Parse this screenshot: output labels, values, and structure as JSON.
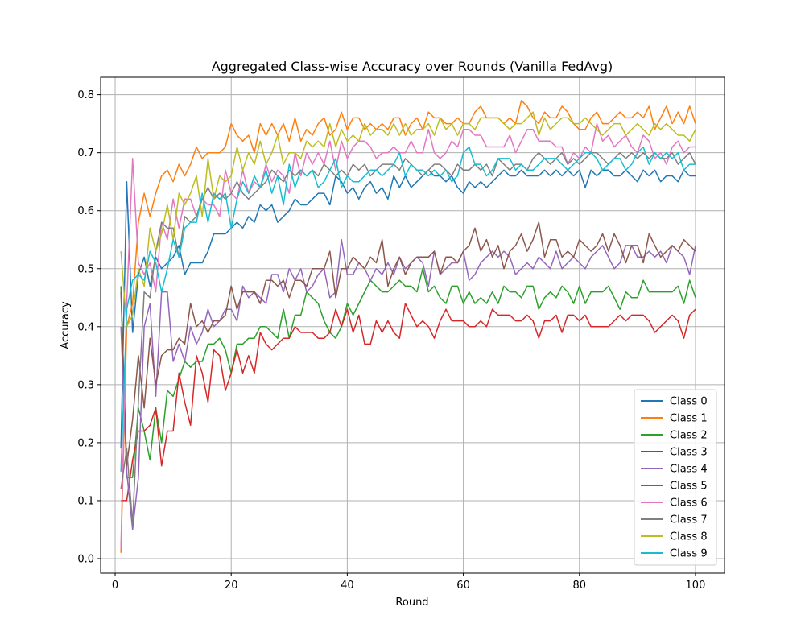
{
  "chart_data": {
    "type": "line",
    "title": "Aggregated Class-wise Accuracy over Rounds (Vanilla FedAvg)",
    "xlabel": "Round",
    "ylabel": "Accuracy",
    "xlim": [
      -2.5,
      105
    ],
    "ylim": [
      -0.025,
      0.83
    ],
    "x_ticks": [
      0,
      20,
      40,
      60,
      80,
      100
    ],
    "y_ticks": [
      0.0,
      0.1,
      0.2,
      0.3,
      0.4,
      0.5,
      0.6,
      0.7,
      0.8
    ],
    "grid": true,
    "legend_position": "lower-right",
    "x_start": 1,
    "series": [
      {
        "name": "Class 0",
        "color": "#1f77b4",
        "values": [
          0.19,
          0.65,
          0.39,
          0.49,
          0.52,
          0.47,
          0.52,
          0.5,
          0.51,
          0.52,
          0.54,
          0.49,
          0.51,
          0.51,
          0.51,
          0.53,
          0.56,
          0.56,
          0.56,
          0.57,
          0.58,
          0.57,
          0.59,
          0.58,
          0.61,
          0.6,
          0.61,
          0.58,
          0.59,
          0.6,
          0.62,
          0.61,
          0.61,
          0.62,
          0.63,
          0.63,
          0.61,
          0.66,
          0.65,
          0.63,
          0.64,
          0.62,
          0.64,
          0.65,
          0.63,
          0.64,
          0.62,
          0.66,
          0.64,
          0.66,
          0.64,
          0.65,
          0.66,
          0.67,
          0.66,
          0.66,
          0.65,
          0.66,
          0.64,
          0.63,
          0.65,
          0.64,
          0.65,
          0.64,
          0.65,
          0.66,
          0.67,
          0.66,
          0.66,
          0.67,
          0.66,
          0.66,
          0.66,
          0.67,
          0.66,
          0.67,
          0.66,
          0.67,
          0.66,
          0.67,
          0.64,
          0.67,
          0.66,
          0.67,
          0.67,
          0.66,
          0.66,
          0.67,
          0.66,
          0.65,
          0.67,
          0.66,
          0.67,
          0.65,
          0.66,
          0.66,
          0.65,
          0.67,
          0.66,
          0.66
        ]
      },
      {
        "name": "Class 1",
        "color": "#ff7f0e",
        "values": [
          0.01,
          0.4,
          0.44,
          0.58,
          0.63,
          0.59,
          0.63,
          0.66,
          0.67,
          0.65,
          0.68,
          0.66,
          0.68,
          0.71,
          0.69,
          0.7,
          0.7,
          0.7,
          0.71,
          0.75,
          0.73,
          0.72,
          0.73,
          0.7,
          0.75,
          0.73,
          0.75,
          0.73,
          0.75,
          0.72,
          0.76,
          0.72,
          0.74,
          0.73,
          0.75,
          0.76,
          0.73,
          0.74,
          0.77,
          0.74,
          0.76,
          0.76,
          0.74,
          0.75,
          0.74,
          0.75,
          0.74,
          0.76,
          0.76,
          0.73,
          0.75,
          0.76,
          0.74,
          0.77,
          0.76,
          0.76,
          0.75,
          0.75,
          0.76,
          0.75,
          0.75,
          0.77,
          0.78,
          0.76,
          0.76,
          0.76,
          0.75,
          0.76,
          0.75,
          0.79,
          0.78,
          0.76,
          0.75,
          0.77,
          0.76,
          0.76,
          0.78,
          0.77,
          0.75,
          0.74,
          0.74,
          0.76,
          0.77,
          0.75,
          0.75,
          0.76,
          0.77,
          0.76,
          0.76,
          0.77,
          0.76,
          0.78,
          0.74,
          0.76,
          0.78,
          0.75,
          0.77,
          0.75,
          0.78,
          0.75
        ]
      },
      {
        "name": "Class 2",
        "color": "#2ca02c",
        "values": [
          0.47,
          0.14,
          0.14,
          0.26,
          0.22,
          0.17,
          0.26,
          0.2,
          0.29,
          0.28,
          0.31,
          0.34,
          0.33,
          0.34,
          0.34,
          0.37,
          0.37,
          0.38,
          0.36,
          0.32,
          0.37,
          0.37,
          0.38,
          0.38,
          0.4,
          0.4,
          0.39,
          0.38,
          0.43,
          0.38,
          0.42,
          0.42,
          0.46,
          0.45,
          0.44,
          0.41,
          0.39,
          0.38,
          0.4,
          0.44,
          0.42,
          0.44,
          0.46,
          0.48,
          0.47,
          0.46,
          0.46,
          0.47,
          0.48,
          0.47,
          0.47,
          0.46,
          0.5,
          0.46,
          0.47,
          0.45,
          0.44,
          0.47,
          0.47,
          0.44,
          0.46,
          0.44,
          0.45,
          0.44,
          0.46,
          0.44,
          0.47,
          0.46,
          0.46,
          0.45,
          0.47,
          0.47,
          0.43,
          0.45,
          0.46,
          0.45,
          0.47,
          0.46,
          0.44,
          0.47,
          0.44,
          0.46,
          0.46,
          0.46,
          0.47,
          0.45,
          0.43,
          0.46,
          0.45,
          0.45,
          0.48,
          0.46,
          0.46,
          0.46,
          0.46,
          0.46,
          0.47,
          0.44,
          0.48,
          0.45
        ]
      },
      {
        "name": "Class 3",
        "color": "#d62728",
        "values": [
          0.1,
          0.1,
          0.17,
          0.22,
          0.22,
          0.23,
          0.26,
          0.16,
          0.22,
          0.22,
          0.32,
          0.27,
          0.23,
          0.35,
          0.32,
          0.27,
          0.36,
          0.35,
          0.29,
          0.32,
          0.36,
          0.32,
          0.35,
          0.32,
          0.39,
          0.37,
          0.36,
          0.37,
          0.38,
          0.38,
          0.4,
          0.39,
          0.39,
          0.39,
          0.38,
          0.38,
          0.39,
          0.43,
          0.4,
          0.43,
          0.39,
          0.42,
          0.37,
          0.37,
          0.41,
          0.39,
          0.41,
          0.39,
          0.38,
          0.44,
          0.42,
          0.4,
          0.41,
          0.4,
          0.38,
          0.41,
          0.43,
          0.41,
          0.41,
          0.41,
          0.4,
          0.4,
          0.41,
          0.4,
          0.43,
          0.42,
          0.42,
          0.42,
          0.41,
          0.41,
          0.42,
          0.41,
          0.38,
          0.41,
          0.41,
          0.42,
          0.39,
          0.42,
          0.42,
          0.41,
          0.42,
          0.4,
          0.4,
          0.4,
          0.4,
          0.41,
          0.42,
          0.41,
          0.42,
          0.42,
          0.42,
          0.41,
          0.39,
          0.4,
          0.41,
          0.42,
          0.41,
          0.38,
          0.42,
          0.43
        ]
      },
      {
        "name": "Class 4",
        "color": "#9467bd",
        "values": [
          0.4,
          0.15,
          0.05,
          0.14,
          0.4,
          0.44,
          0.28,
          0.46,
          0.46,
          0.34,
          0.37,
          0.34,
          0.4,
          0.37,
          0.39,
          0.43,
          0.4,
          0.41,
          0.43,
          0.43,
          0.41,
          0.47,
          0.45,
          0.46,
          0.45,
          0.44,
          0.49,
          0.49,
          0.46,
          0.5,
          0.48,
          0.5,
          0.46,
          0.47,
          0.49,
          0.5,
          0.45,
          0.46,
          0.55,
          0.49,
          0.49,
          0.51,
          0.5,
          0.48,
          0.5,
          0.49,
          0.51,
          0.49,
          0.52,
          0.5,
          0.51,
          0.52,
          0.51,
          0.47,
          0.53,
          0.49,
          0.5,
          0.51,
          0.51,
          0.53,
          0.48,
          0.49,
          0.51,
          0.52,
          0.53,
          0.52,
          0.53,
          0.52,
          0.49,
          0.5,
          0.51,
          0.5,
          0.52,
          0.51,
          0.5,
          0.53,
          0.5,
          0.51,
          0.52,
          0.51,
          0.5,
          0.52,
          0.53,
          0.54,
          0.52,
          0.5,
          0.51,
          0.54,
          0.54,
          0.52,
          0.52,
          0.53,
          0.52,
          0.53,
          0.51,
          0.54,
          0.53,
          0.52,
          0.49,
          0.54
        ]
      },
      {
        "name": "Class 5",
        "color": "#8c564b",
        "values": [
          0.46,
          0.16,
          0.24,
          0.35,
          0.26,
          0.38,
          0.3,
          0.35,
          0.36,
          0.36,
          0.38,
          0.37,
          0.44,
          0.4,
          0.41,
          0.39,
          0.41,
          0.41,
          0.42,
          0.47,
          0.43,
          0.46,
          0.46,
          0.46,
          0.44,
          0.48,
          0.48,
          0.47,
          0.48,
          0.45,
          0.48,
          0.48,
          0.47,
          0.5,
          0.5,
          0.5,
          0.53,
          0.45,
          0.5,
          0.5,
          0.52,
          0.51,
          0.5,
          0.52,
          0.51,
          0.55,
          0.47,
          0.5,
          0.52,
          0.49,
          0.51,
          0.52,
          0.52,
          0.52,
          0.53,
          0.49,
          0.52,
          0.52,
          0.51,
          0.53,
          0.54,
          0.57,
          0.53,
          0.55,
          0.52,
          0.54,
          0.5,
          0.53,
          0.54,
          0.56,
          0.53,
          0.55,
          0.58,
          0.52,
          0.55,
          0.55,
          0.52,
          0.53,
          0.52,
          0.55,
          0.54,
          0.53,
          0.54,
          0.56,
          0.53,
          0.56,
          0.54,
          0.51,
          0.54,
          0.54,
          0.51,
          0.56,
          0.54,
          0.52,
          0.53,
          0.54,
          0.53,
          0.55,
          0.54,
          0.53
        ]
      },
      {
        "name": "Class 6",
        "color": "#e377c2",
        "values": [
          0.02,
          0.44,
          0.69,
          0.51,
          0.49,
          0.51,
          0.46,
          0.58,
          0.55,
          0.62,
          0.57,
          0.62,
          0.62,
          0.59,
          0.62,
          0.61,
          0.61,
          0.59,
          0.67,
          0.63,
          0.62,
          0.67,
          0.63,
          0.65,
          0.64,
          0.68,
          0.65,
          0.67,
          0.66,
          0.63,
          0.7,
          0.66,
          0.7,
          0.68,
          0.7,
          0.68,
          0.72,
          0.67,
          0.72,
          0.69,
          0.71,
          0.72,
          0.72,
          0.71,
          0.69,
          0.7,
          0.7,
          0.71,
          0.7,
          0.7,
          0.72,
          0.7,
          0.7,
          0.74,
          0.7,
          0.69,
          0.7,
          0.72,
          0.71,
          0.74,
          0.74,
          0.73,
          0.73,
          0.71,
          0.71,
          0.71,
          0.71,
          0.73,
          0.7,
          0.72,
          0.74,
          0.74,
          0.72,
          0.72,
          0.72,
          0.71,
          0.71,
          0.68,
          0.7,
          0.69,
          0.71,
          0.7,
          0.75,
          0.72,
          0.73,
          0.71,
          0.72,
          0.73,
          0.71,
          0.7,
          0.73,
          0.72,
          0.69,
          0.7,
          0.68,
          0.71,
          0.72,
          0.7,
          0.71,
          0.71
        ]
      },
      {
        "name": "Class 7",
        "color": "#7f7f7f",
        "values": [
          0.12,
          0.19,
          0.06,
          0.27,
          0.46,
          0.45,
          0.53,
          0.58,
          0.57,
          0.57,
          0.52,
          0.59,
          0.58,
          0.59,
          0.62,
          0.64,
          0.62,
          0.63,
          0.62,
          0.63,
          0.65,
          0.63,
          0.62,
          0.63,
          0.64,
          0.65,
          0.67,
          0.66,
          0.65,
          0.67,
          0.66,
          0.67,
          0.66,
          0.67,
          0.66,
          0.68,
          0.67,
          0.66,
          0.67,
          0.66,
          0.68,
          0.67,
          0.68,
          0.66,
          0.67,
          0.68,
          0.68,
          0.68,
          0.67,
          0.69,
          0.68,
          0.67,
          0.66,
          0.67,
          0.68,
          0.68,
          0.67,
          0.66,
          0.68,
          0.67,
          0.67,
          0.68,
          0.67,
          0.68,
          0.66,
          0.69,
          0.68,
          0.67,
          0.68,
          0.68,
          0.67,
          0.69,
          0.7,
          0.69,
          0.68,
          0.69,
          0.7,
          0.68,
          0.69,
          0.68,
          0.69,
          0.7,
          0.7,
          0.69,
          0.68,
          0.69,
          0.7,
          0.69,
          0.7,
          0.69,
          0.7,
          0.69,
          0.7,
          0.69,
          0.69,
          0.7,
          0.68,
          0.69,
          0.7,
          0.68
        ]
      },
      {
        "name": "Class 8",
        "color": "#bcbd22",
        "values": [
          0.53,
          0.4,
          0.42,
          0.5,
          0.47,
          0.57,
          0.53,
          0.56,
          0.61,
          0.55,
          0.63,
          0.61,
          0.63,
          0.66,
          0.59,
          0.69,
          0.62,
          0.66,
          0.65,
          0.66,
          0.71,
          0.67,
          0.7,
          0.68,
          0.72,
          0.68,
          0.7,
          0.73,
          0.68,
          0.7,
          0.7,
          0.69,
          0.72,
          0.71,
          0.72,
          0.71,
          0.75,
          0.71,
          0.74,
          0.72,
          0.73,
          0.72,
          0.75,
          0.73,
          0.74,
          0.74,
          0.73,
          0.75,
          0.73,
          0.75,
          0.73,
          0.74,
          0.74,
          0.75,
          0.73,
          0.76,
          0.74,
          0.75,
          0.73,
          0.75,
          0.75,
          0.74,
          0.76,
          0.76,
          0.76,
          0.76,
          0.75,
          0.74,
          0.75,
          0.75,
          0.76,
          0.77,
          0.73,
          0.76,
          0.74,
          0.75,
          0.76,
          0.76,
          0.75,
          0.75,
          0.76,
          0.75,
          0.74,
          0.73,
          0.74,
          0.75,
          0.75,
          0.73,
          0.74,
          0.75,
          0.74,
          0.73,
          0.75,
          0.74,
          0.75,
          0.74,
          0.73,
          0.73,
          0.72,
          0.74
        ]
      },
      {
        "name": "Class 9",
        "color": "#17becf",
        "values": [
          0.15,
          0.43,
          0.48,
          0.49,
          0.48,
          0.53,
          0.51,
          0.46,
          0.5,
          0.55,
          0.52,
          0.57,
          0.58,
          0.58,
          0.63,
          0.58,
          0.63,
          0.62,
          0.63,
          0.57,
          0.62,
          0.65,
          0.63,
          0.66,
          0.64,
          0.67,
          0.63,
          0.66,
          0.61,
          0.68,
          0.64,
          0.67,
          0.66,
          0.67,
          0.64,
          0.65,
          0.67,
          0.69,
          0.64,
          0.66,
          0.65,
          0.65,
          0.66,
          0.67,
          0.67,
          0.66,
          0.67,
          0.68,
          0.7,
          0.66,
          0.68,
          0.67,
          0.67,
          0.66,
          0.67,
          0.66,
          0.67,
          0.65,
          0.66,
          0.7,
          0.71,
          0.68,
          0.68,
          0.66,
          0.67,
          0.69,
          0.69,
          0.69,
          0.67,
          0.68,
          0.67,
          0.67,
          0.68,
          0.69,
          0.69,
          0.69,
          0.68,
          0.67,
          0.68,
          0.69,
          0.7,
          0.7,
          0.69,
          0.67,
          0.68,
          0.69,
          0.69,
          0.67,
          0.68,
          0.7,
          0.71,
          0.68,
          0.7,
          0.69,
          0.7,
          0.69,
          0.7,
          0.67,
          0.68,
          0.68
        ]
      }
    ]
  }
}
